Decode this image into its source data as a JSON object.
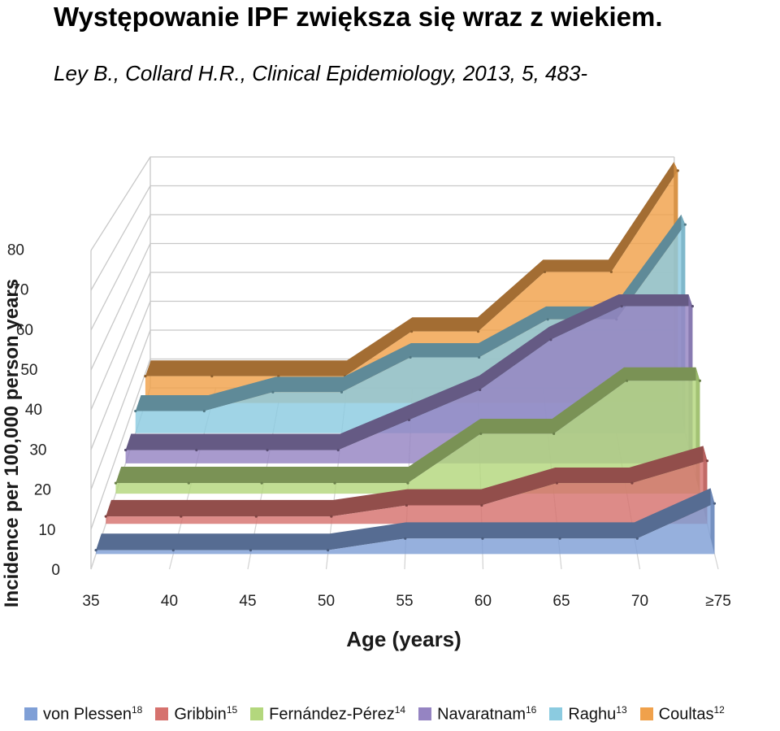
{
  "slide": {
    "title": "Występowanie IPF zwiększa się wraz z wiekiem.",
    "citation": "Ley B., Collard H.R., Clinical Epidemiology, 2013, 5, 483-"
  },
  "chart_data": {
    "type": "area",
    "view": "3d-stacked-depth",
    "xlabel": "Age (years)",
    "ylabel": "Incidence per 100,000 person years",
    "x_ticks": [
      "35",
      "40",
      "45",
      "50",
      "55",
      "60",
      "65",
      "70",
      "≥75"
    ],
    "y_ticks": [
      0,
      10,
      20,
      30,
      40,
      50,
      60,
      70,
      80
    ],
    "ylim": [
      0,
      80
    ],
    "grid": true,
    "legend_position": "bottom",
    "series": [
      {
        "name": "von Plessen",
        "ref": "18",
        "color": "#7f9fd6",
        "values": [
          1,
          1,
          1,
          1,
          4,
          4,
          4,
          4,
          13
        ]
      },
      {
        "name": "Gribbin",
        "ref": "15",
        "color": "#d6726e",
        "values": [
          2,
          2,
          2,
          2,
          5,
          5,
          11,
          11,
          17
        ]
      },
      {
        "name": "Fernández-Pérez",
        "ref": "14",
        "color": "#b3d77d",
        "values": [
          3,
          3,
          3,
          3,
          3,
          17,
          17,
          32,
          32
        ]
      },
      {
        "name": "Navaratnam",
        "ref": "16",
        "color": "#9584c2",
        "values": [
          4,
          4,
          4,
          4,
          13,
          22,
          37,
          47,
          47
        ]
      },
      {
        "name": "Raghu",
        "ref": "13",
        "color": "#8bcbe0",
        "values": [
          7,
          7,
          13,
          13,
          24,
          24,
          36,
          36,
          66
        ]
      },
      {
        "name": "Coultas",
        "ref": "12",
        "color": "#f0a14b",
        "values": [
          9,
          9,
          9,
          9,
          24,
          24,
          44,
          44,
          78
        ]
      }
    ]
  }
}
